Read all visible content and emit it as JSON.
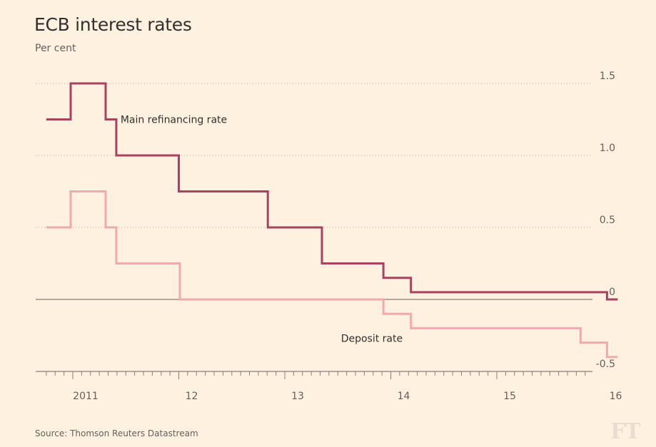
{
  "header": {
    "title": "ECB interest rates",
    "subtitle": "Per cent"
  },
  "footer": {
    "source": "Source: Thomson Reuters Datastream",
    "logo": "FT"
  },
  "colors": {
    "background": "#fff1e0",
    "main_rate": "#a9415f",
    "deposit_rate": "#f2a9ad",
    "gridline": "#b6aca0",
    "zero_line": "#8a8079"
  },
  "chart_data": {
    "type": "line",
    "step": true,
    "title": "ECB interest rates",
    "ylabel": "Per cent",
    "xlabel": "",
    "ylim": [
      -0.5,
      1.5
    ],
    "xlim": [
      2010.67,
      2016.2
    ],
    "y_ticks": [
      {
        "value": 1.5,
        "label": "1.5"
      },
      {
        "value": 1.0,
        "label": "1.0"
      },
      {
        "value": 0.5,
        "label": "0.5"
      },
      {
        "value": 0,
        "label": "0"
      },
      {
        "value": -0.5,
        "label": "-0.5"
      }
    ],
    "x_ticks": [
      {
        "value": 2011,
        "label": "2011"
      },
      {
        "value": 2012,
        "label": "12"
      },
      {
        "value": 2013,
        "label": "13"
      },
      {
        "value": 2014,
        "label": "14"
      },
      {
        "value": 2015,
        "label": "15"
      },
      {
        "value": 2016,
        "label": "16"
      }
    ],
    "series": [
      {
        "name": "Main refinancing rate",
        "label_anchor": {
          "x": 2011.45,
          "y": 1.25
        },
        "points": [
          {
            "x": 2010.75,
            "y": 1.25
          },
          {
            "x": 2010.98,
            "y": 1.25
          },
          {
            "x": 2010.98,
            "y": 1.5
          },
          {
            "x": 2011.31,
            "y": 1.5
          },
          {
            "x": 2011.31,
            "y": 1.25
          },
          {
            "x": 2011.41,
            "y": 1.25
          },
          {
            "x": 2011.41,
            "y": 1.0
          },
          {
            "x": 2012.0,
            "y": 1.0
          },
          {
            "x": 2012.0,
            "y": 0.75
          },
          {
            "x": 2012.84,
            "y": 0.75
          },
          {
            "x": 2012.84,
            "y": 0.5
          },
          {
            "x": 2013.35,
            "y": 0.5
          },
          {
            "x": 2013.35,
            "y": 0.25
          },
          {
            "x": 2013.93,
            "y": 0.25
          },
          {
            "x": 2013.93,
            "y": 0.15
          },
          {
            "x": 2014.19,
            "y": 0.15
          },
          {
            "x": 2014.19,
            "y": 0.05
          },
          {
            "x": 2016.04,
            "y": 0.05
          },
          {
            "x": 2016.04,
            "y": 0.0
          },
          {
            "x": 2016.14,
            "y": 0.0
          }
        ]
      },
      {
        "name": "Deposit rate",
        "label_anchor": {
          "x": 2013.53,
          "y": -0.27
        },
        "points": [
          {
            "x": 2010.75,
            "y": 0.5
          },
          {
            "x": 2010.98,
            "y": 0.5
          },
          {
            "x": 2010.98,
            "y": 0.75
          },
          {
            "x": 2011.31,
            "y": 0.75
          },
          {
            "x": 2011.31,
            "y": 0.5
          },
          {
            "x": 2011.41,
            "y": 0.5
          },
          {
            "x": 2011.41,
            "y": 0.25
          },
          {
            "x": 2012.01,
            "y": 0.25
          },
          {
            "x": 2012.01,
            "y": 0.0
          },
          {
            "x": 2013.93,
            "y": 0.0
          },
          {
            "x": 2013.93,
            "y": -0.1
          },
          {
            "x": 2014.19,
            "y": -0.1
          },
          {
            "x": 2014.19,
            "y": -0.2
          },
          {
            "x": 2015.79,
            "y": -0.2
          },
          {
            "x": 2015.79,
            "y": -0.3
          },
          {
            "x": 2016.04,
            "y": -0.3
          },
          {
            "x": 2016.04,
            "y": -0.4
          },
          {
            "x": 2016.14,
            "y": -0.4
          }
        ]
      }
    ],
    "legend": "inline labels near lines"
  }
}
